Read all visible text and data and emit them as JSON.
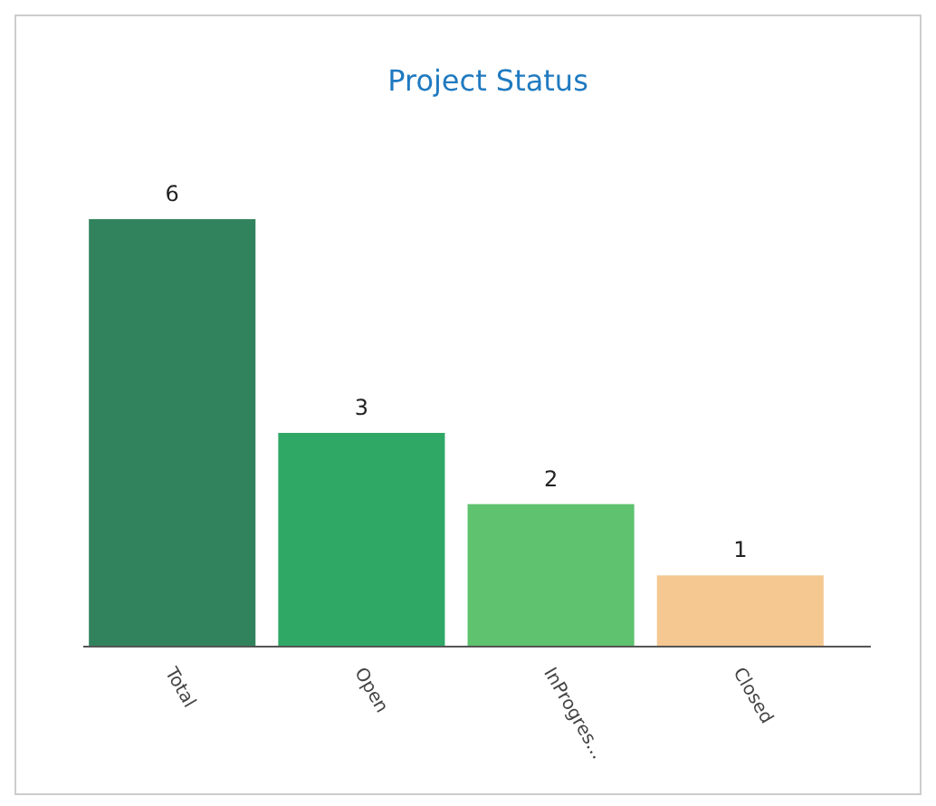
{
  "chart_data": {
    "type": "bar",
    "title": "Project Status",
    "categories": [
      "Total",
      "Open",
      "InProgres...",
      "Closed"
    ],
    "values": [
      6,
      3,
      2,
      1
    ],
    "colors": [
      "#31835d",
      "#2fa866",
      "#5ec26e",
      "#f5c791"
    ],
    "data_labels": true
  }
}
